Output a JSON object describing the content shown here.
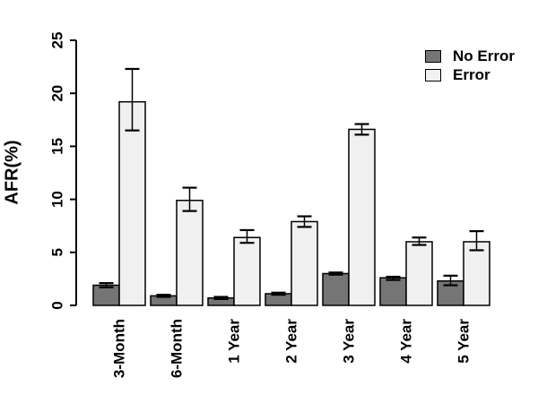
{
  "figure": {
    "background": "#ffffff",
    "axis_color": "#000000",
    "bar_outline": "#000000"
  },
  "chart_data": {
    "type": "bar",
    "title": "",
    "xlabel": "",
    "ylabel": "AFR(%)",
    "categories": [
      "3-Month",
      "6-Month",
      "1 Year",
      "2 Year",
      "3 Year",
      "4 Year",
      "5 Year"
    ],
    "series": [
      {
        "name": "No Error",
        "color": "#757575",
        "values": [
          1.9,
          0.9,
          0.7,
          1.1,
          3.0,
          2.6,
          2.3
        ],
        "error_low": [
          1.7,
          0.8,
          0.6,
          1.0,
          2.9,
          2.4,
          1.9
        ],
        "error_high": [
          2.1,
          1.0,
          0.8,
          1.2,
          3.1,
          2.7,
          2.8
        ]
      },
      {
        "name": "Error",
        "color": "#f0f0f0",
        "values": [
          19.2,
          9.9,
          6.4,
          7.9,
          16.6,
          6.0,
          6.0
        ],
        "error_low": [
          16.5,
          8.9,
          5.9,
          7.4,
          16.1,
          5.7,
          5.2
        ],
        "error_high": [
          22.3,
          11.1,
          7.1,
          8.4,
          17.1,
          6.4,
          7.0
        ]
      }
    ],
    "ylim": [
      0,
      25
    ],
    "yticks": [
      0,
      5,
      10,
      15,
      20,
      25
    ],
    "grid": false,
    "legend_position": "top-right",
    "x_tick_label_rotation": 90,
    "y_tick_label_rotation": 90
  }
}
